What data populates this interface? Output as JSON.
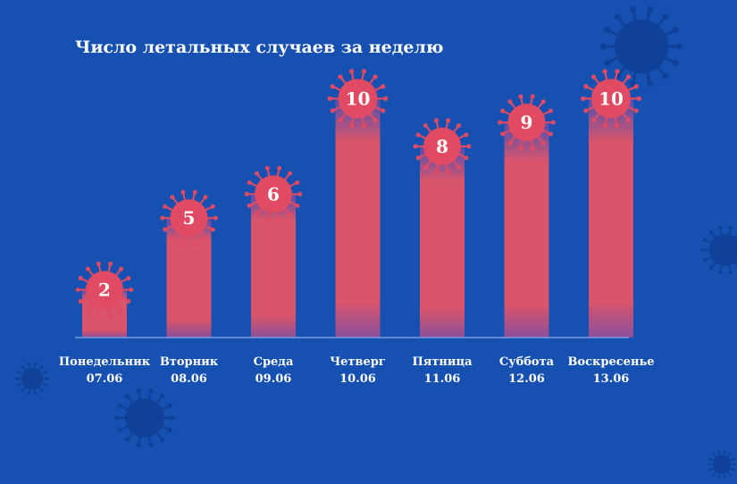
{
  "colors": {
    "background": "#1650b0",
    "bar": "#d9546b",
    "virus": "#e04b63",
    "virus_bg": "#0f3f95",
    "axis": "#7d9be0"
  },
  "chart_data": {
    "type": "bar",
    "title": "Число летальных случаев за неделю",
    "categories": [
      {
        "day": "Понедельник",
        "date": "07.06"
      },
      {
        "day": "Вторник",
        "date": "08.06"
      },
      {
        "day": "Среда",
        "date": "09.06"
      },
      {
        "day": "Четверг",
        "date": "10.06"
      },
      {
        "day": "Пятница",
        "date": "11.06"
      },
      {
        "day": "Суббота",
        "date": "12.06"
      },
      {
        "day": "Воскресенье",
        "date": "13.06"
      }
    ],
    "values": [
      2,
      5,
      6,
      10,
      8,
      9,
      10
    ],
    "ylim": [
      0,
      10.5
    ],
    "grid": false,
    "legend": "none"
  }
}
